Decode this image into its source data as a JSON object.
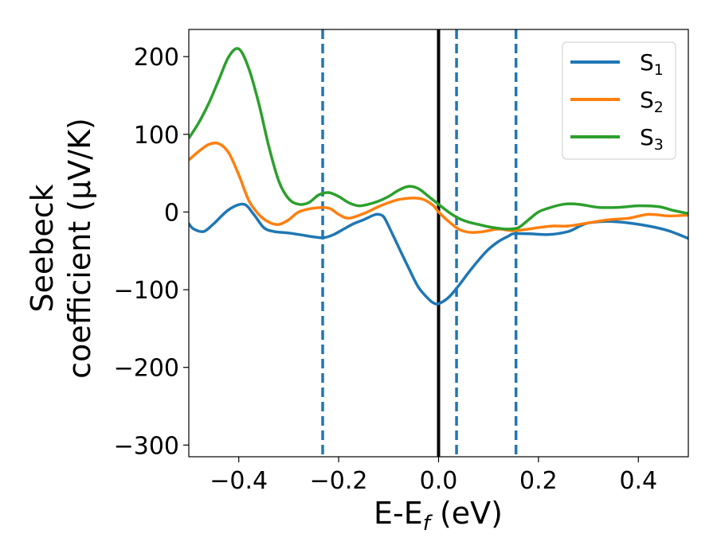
{
  "chart_data": {
    "type": "line",
    "xlabel": "E-E",
    "xlabel_sub": "f",
    "xlabel_unit": " (eV)",
    "ylabel_line1": "Seebeck",
    "ylabel_line2": "coefficient  (μV/K)",
    "xlim": [
      -0.5,
      0.5
    ],
    "ylim": [
      -315,
      235
    ],
    "xticks": [
      -0.4,
      -0.2,
      0.0,
      0.2,
      0.4
    ],
    "xtick_labels": [
      "−0.4",
      "−0.2",
      "0.0",
      "0.2",
      "0.4"
    ],
    "yticks": [
      -300,
      -200,
      -100,
      0,
      100,
      200
    ],
    "ytick_labels": [
      "−300",
      "−200",
      "−100",
      "0",
      "100",
      "200"
    ],
    "grid": false,
    "legend_position": "top-right",
    "vertical_lines": [
      {
        "x": -0.232,
        "style": "dashed",
        "color": "#1f77b4"
      },
      {
        "x": 0.0,
        "style": "solid",
        "color": "#000000"
      },
      {
        "x": 0.036,
        "style": "dashed",
        "color": "#1f77b4"
      },
      {
        "x": 0.155,
        "style": "dashed",
        "color": "#1f77b4"
      }
    ],
    "series": [
      {
        "name": "S",
        "name_sub": "1",
        "color": "#1f77b4",
        "x": [
          -0.5,
          -0.49,
          -0.47,
          -0.45,
          -0.42,
          -0.39,
          -0.37,
          -0.35,
          -0.33,
          -0.3,
          -0.27,
          -0.25,
          -0.23,
          -0.21,
          -0.19,
          -0.17,
          -0.15,
          -0.13,
          -0.12,
          -0.11,
          -0.1,
          -0.08,
          -0.06,
          -0.04,
          -0.02,
          -0.01,
          0.0,
          0.02,
          0.04,
          0.06,
          0.08,
          0.1,
          0.12,
          0.14,
          0.15,
          0.18,
          0.22,
          0.26,
          0.28,
          0.3,
          0.34,
          0.38,
          0.42,
          0.46,
          0.5
        ],
        "y": [
          -15,
          -22,
          -25,
          -15,
          3,
          10,
          -3,
          -20,
          -25,
          -27,
          -30,
          -32,
          -33,
          -29,
          -22,
          -15,
          -10,
          -4,
          -3,
          -6,
          -18,
          -45,
          -72,
          -97,
          -112,
          -117,
          -118,
          -110,
          -95,
          -78,
          -62,
          -48,
          -38,
          -31,
          -28,
          -28,
          -29,
          -25,
          -19,
          -14,
          -12,
          -14,
          -18,
          -24,
          -34
        ]
      },
      {
        "name": "S",
        "name_sub": "2",
        "color": "#ff7f0e",
        "x": [
          -0.5,
          -0.48,
          -0.46,
          -0.44,
          -0.42,
          -0.4,
          -0.38,
          -0.36,
          -0.34,
          -0.32,
          -0.3,
          -0.28,
          -0.25,
          -0.22,
          -0.2,
          -0.18,
          -0.15,
          -0.12,
          -0.1,
          -0.08,
          -0.05,
          -0.03,
          -0.01,
          0.0,
          0.02,
          0.04,
          0.06,
          0.08,
          0.1,
          0.12,
          0.15,
          0.18,
          0.2,
          0.23,
          0.26,
          0.3,
          0.34,
          0.38,
          0.42,
          0.46,
          0.5
        ],
        "y": [
          67,
          78,
          87,
          88,
          76,
          48,
          15,
          -3,
          -13,
          -16,
          -10,
          0,
          5,
          5,
          -3,
          -8,
          -2,
          7,
          12,
          16,
          18,
          16,
          8,
          0,
          -12,
          -22,
          -26,
          -26,
          -24,
          -22,
          -24,
          -22,
          -20,
          -18,
          -18,
          -14,
          -10,
          -8,
          -3,
          -5,
          -4
        ]
      },
      {
        "name": "S",
        "name_sub": "3",
        "color": "#2ca02c",
        "x": [
          -0.5,
          -0.48,
          -0.46,
          -0.44,
          -0.42,
          -0.4,
          -0.38,
          -0.36,
          -0.34,
          -0.32,
          -0.3,
          -0.28,
          -0.26,
          -0.24,
          -0.22,
          -0.2,
          -0.18,
          -0.16,
          -0.14,
          -0.12,
          -0.1,
          -0.08,
          -0.06,
          -0.04,
          -0.02,
          0.0,
          0.02,
          0.04,
          0.06,
          0.08,
          0.1,
          0.12,
          0.14,
          0.16,
          0.18,
          0.2,
          0.22,
          0.25,
          0.28,
          0.32,
          0.36,
          0.4,
          0.44,
          0.47,
          0.5
        ],
        "y": [
          95,
          115,
          140,
          170,
          200,
          210,
          185,
          140,
          85,
          40,
          17,
          10,
          12,
          22,
          25,
          20,
          12,
          8,
          10,
          14,
          20,
          28,
          33,
          30,
          20,
          10,
          0,
          -8,
          -13,
          -16,
          -19,
          -21,
          -22,
          -20,
          -10,
          0,
          5,
          10,
          10,
          6,
          6,
          8,
          7,
          2,
          -2
        ]
      }
    ]
  }
}
